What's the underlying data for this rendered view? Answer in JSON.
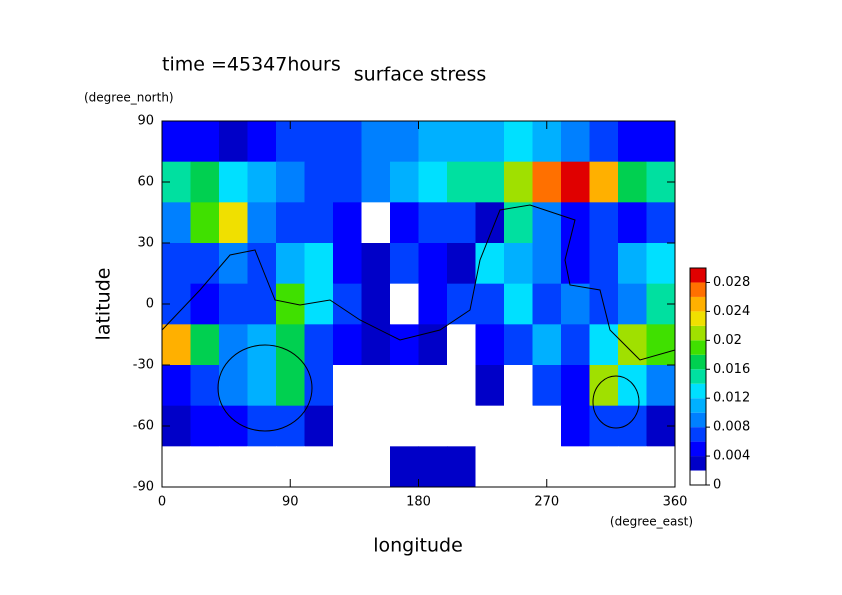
{
  "chart_data": {
    "type": "contour",
    "title": "surface stress",
    "annotation": "time =45347hours",
    "xlabel": "longitude",
    "ylabel": "latitude",
    "xunit": "(degree_east)",
    "yunit": "(degree_north)",
    "xlim": [
      0,
      360
    ],
    "ylim": [
      -90,
      90
    ],
    "xticks": [
      0,
      90,
      180,
      270,
      360
    ],
    "yticks": [
      -90,
      -60,
      -30,
      0,
      30,
      60,
      90
    ],
    "x": [
      10,
      30,
      50,
      70,
      90,
      110,
      130,
      150,
      170,
      190,
      210,
      230,
      250,
      270,
      290,
      310,
      330,
      350
    ],
    "y": [
      80,
      60,
      40,
      20,
      0,
      -20,
      -40,
      -60,
      -80
    ],
    "z": [
      [
        0.004,
        0.004,
        0.002,
        0.004,
        0.006,
        0.006,
        0.006,
        0.008,
        0.008,
        0.01,
        0.01,
        0.01,
        0.012,
        0.01,
        0.008,
        0.006,
        0.004,
        0.004
      ],
      [
        0.014,
        0.016,
        0.012,
        0.01,
        0.008,
        0.006,
        0.006,
        0.008,
        0.01,
        0.012,
        0.014,
        0.014,
        0.02,
        0.026,
        0.028,
        0.024,
        0.016,
        0.014
      ],
      [
        0.008,
        0.018,
        0.022,
        0.008,
        0.006,
        0.006,
        0.004,
        0,
        0.004,
        0.006,
        0.006,
        0.002,
        0.014,
        0.008,
        0.004,
        0.006,
        0.004,
        0.006
      ],
      [
        0.006,
        0.006,
        0.008,
        0.006,
        0.01,
        0.012,
        0.004,
        0.002,
        0.006,
        0.004,
        0.002,
        0.012,
        0.01,
        0.008,
        0.004,
        0.006,
        0.01,
        0.012
      ],
      [
        0.006,
        0.004,
        0.006,
        0.006,
        0.018,
        0.012,
        0.006,
        0.002,
        0,
        0.004,
        0.006,
        0.006,
        0.012,
        0.006,
        0.008,
        0.006,
        0.008,
        0.014
      ],
      [
        0.024,
        0.016,
        0.008,
        0.01,
        0.016,
        0.006,
        0.004,
        0.002,
        0.004,
        0.002,
        0,
        0.004,
        0.006,
        0.01,
        0.006,
        0.012,
        0.02,
        0.018
      ],
      [
        0.004,
        0.006,
        0.008,
        0.01,
        0.016,
        0.006,
        0,
        0,
        0,
        0,
        0,
        0.002,
        0,
        0.006,
        0.004,
        0.02,
        0.012,
        0.008
      ],
      [
        0.002,
        0.004,
        0.004,
        0.006,
        0.006,
        0.002,
        0,
        0,
        0,
        0,
        0,
        0,
        0,
        0,
        0.004,
        0.006,
        0.006,
        0.002
      ],
      [
        0,
        0,
        0,
        0,
        0,
        0,
        0,
        0,
        0.002,
        0.002,
        0.002,
        0,
        0,
        0,
        0,
        0,
        0,
        0
      ]
    ],
    "levels": [
      0,
      0.002,
      0.004,
      0.006,
      0.008,
      0.01,
      0.012,
      0.014,
      0.016,
      0.018,
      0.02,
      0.022,
      0.024,
      0.026,
      0.028,
      0.03
    ],
    "level_colors": [
      "#ffffff",
      "#0000c8",
      "#0000ff",
      "#0040ff",
      "#0080ff",
      "#00b0ff",
      "#00e0ff",
      "#00e0a0",
      "#00d050",
      "#40e000",
      "#a0e000",
      "#f0e000",
      "#ffb000",
      "#ff7000",
      "#e00000"
    ],
    "clim": [
      0,
      0.03
    ],
    "cticks": [
      0,
      0.004,
      0.008,
      0.012,
      0.016,
      0.02,
      0.024,
      0.028
    ]
  }
}
